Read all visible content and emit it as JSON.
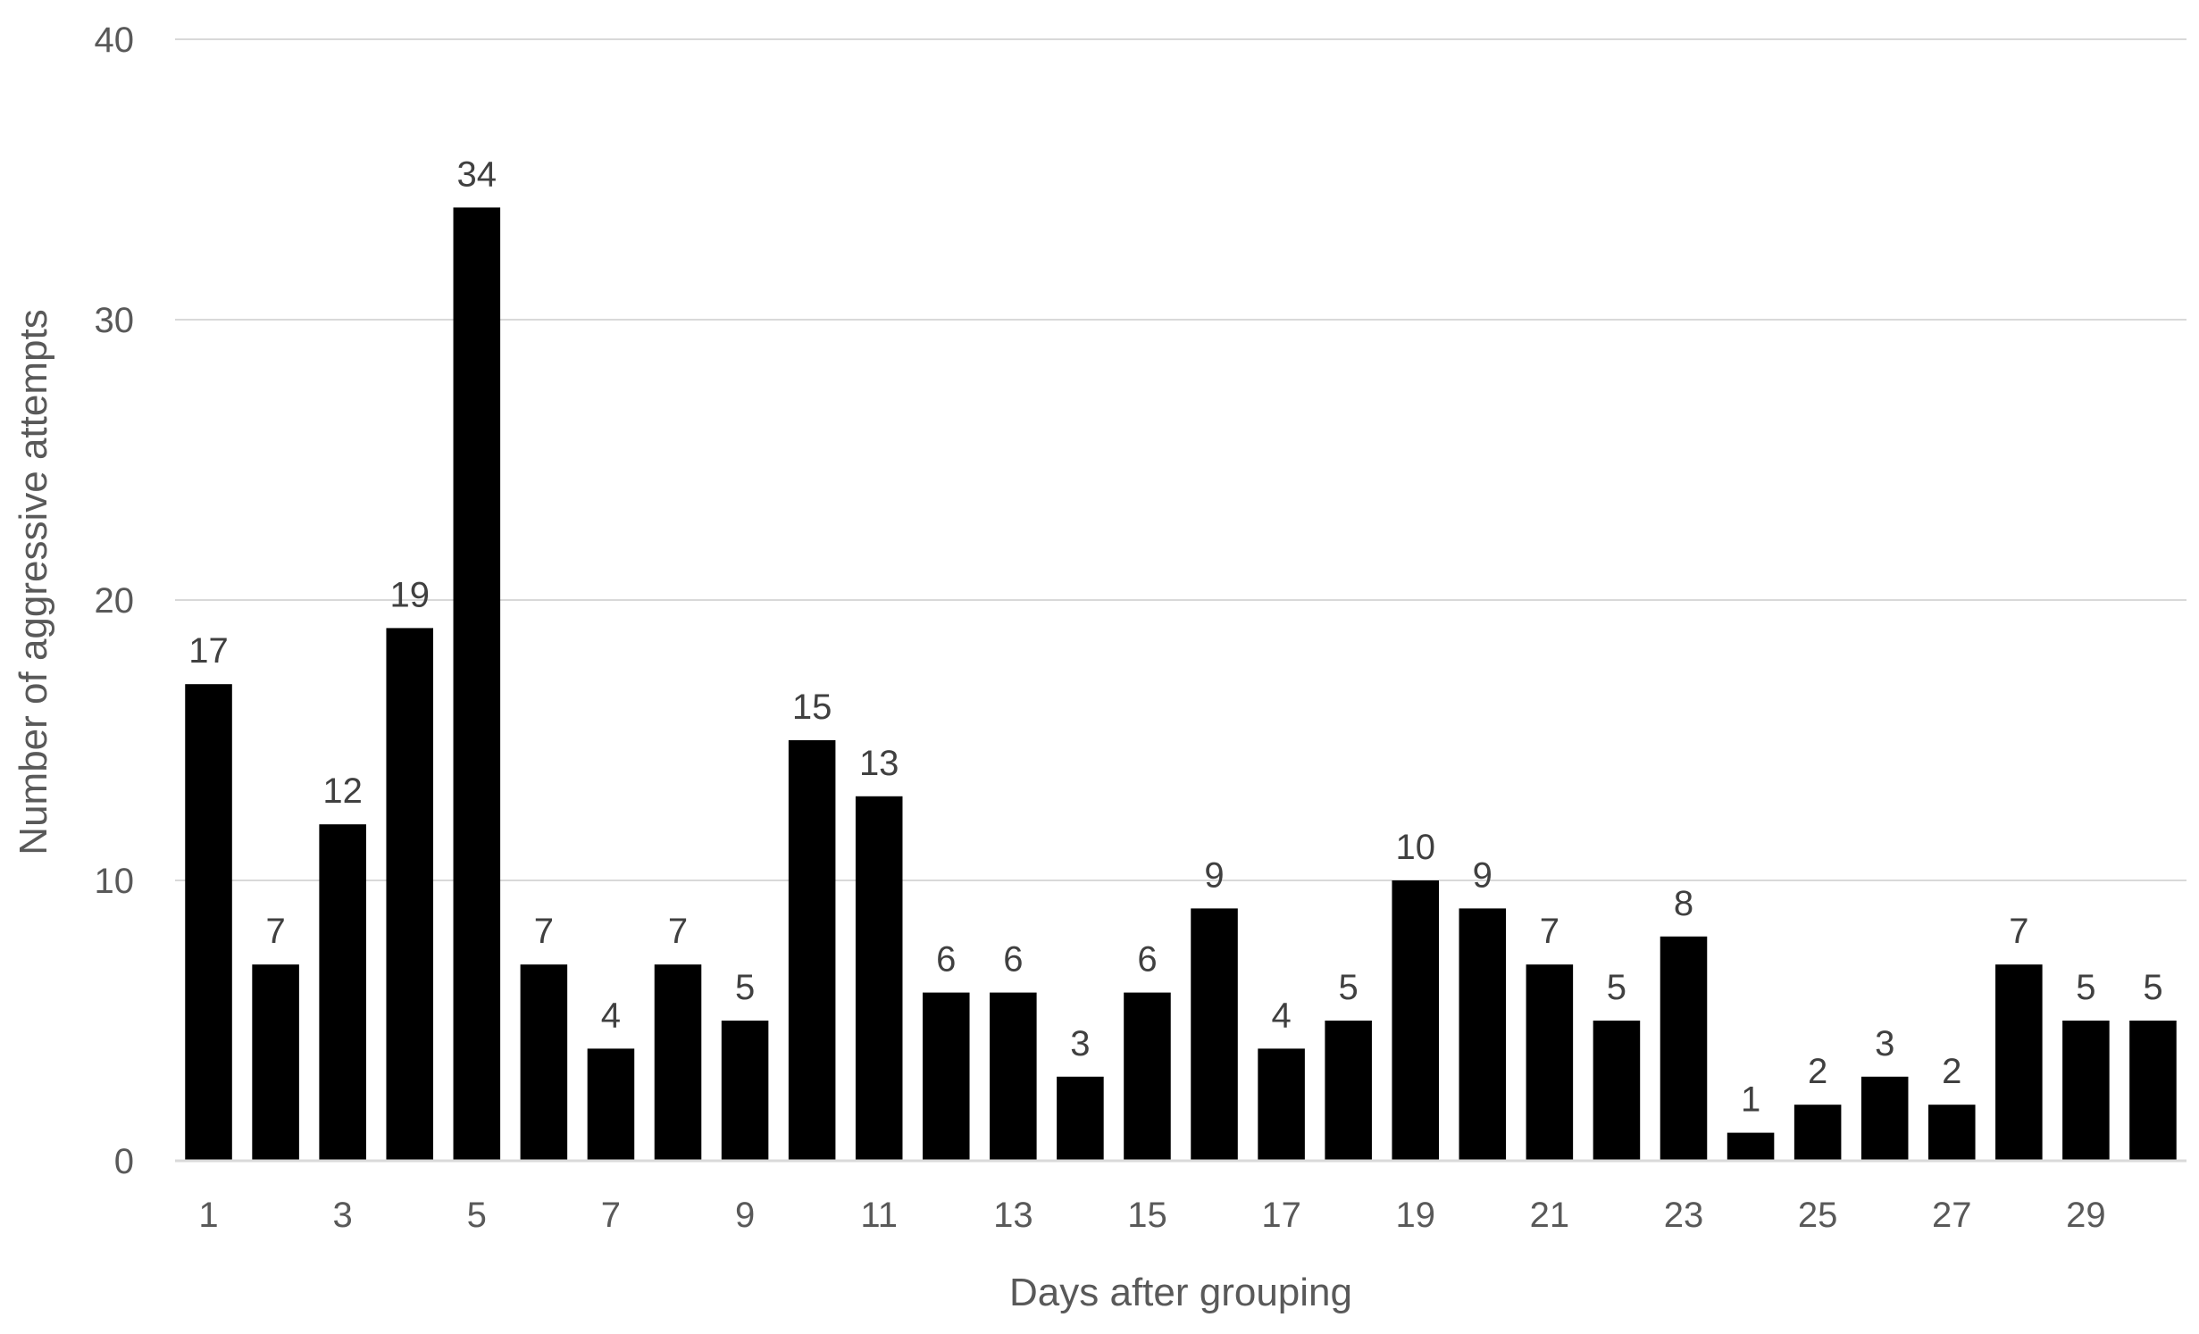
{
  "chart_data": {
    "type": "bar",
    "categories": [
      1,
      2,
      3,
      4,
      5,
      6,
      7,
      8,
      9,
      10,
      11,
      12,
      13,
      14,
      15,
      16,
      17,
      18,
      19,
      20,
      21,
      22,
      23,
      24,
      25,
      26,
      27,
      28,
      29,
      30
    ],
    "values": [
      17,
      7,
      12,
      19,
      34,
      7,
      4,
      7,
      5,
      15,
      13,
      6,
      6,
      3,
      6,
      9,
      4,
      5,
      10,
      9,
      7,
      5,
      8,
      1,
      2,
      3,
      2,
      7,
      5,
      5
    ],
    "xtick_labels": [
      "1",
      "",
      "3",
      "",
      "5",
      "",
      "7",
      "",
      "9",
      "",
      "11",
      "",
      "13",
      "",
      "15",
      "",
      "17",
      "",
      "19",
      "",
      "21",
      "",
      "23",
      "",
      "25",
      "",
      "27",
      "",
      "29",
      ""
    ],
    "ytick_labels": [
      "0",
      "10",
      "20",
      "30",
      "40"
    ],
    "xlabel": "Days after grouping",
    "ylabel": "Number of aggressive attempts",
    "ylim": [
      0,
      40
    ],
    "yticks": [
      0,
      10,
      20,
      30,
      40
    ],
    "grid": true,
    "data_labels": true,
    "bar_color": "#000000",
    "gridline_color": "#d9d9d9"
  }
}
